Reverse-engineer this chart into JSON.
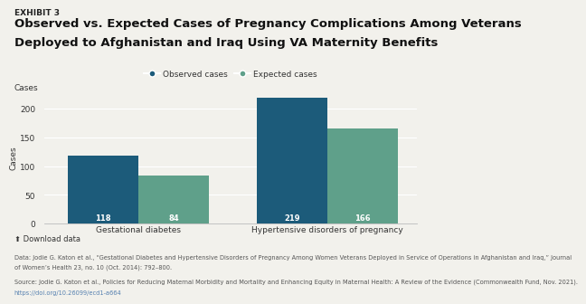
{
  "exhibit_label": "EXHIBIT 3",
  "title_line1": "Observed vs. Expected Cases of Pregnancy Complications Among Veterans",
  "title_line2": "Deployed to Afghanistan and Iraq Using VA Maternity Benefits",
  "ylabel": "Cases",
  "categories": [
    "Gestational diabetes",
    "Hypertensive disorders of pregnancy"
  ],
  "observed_values": [
    118,
    219
  ],
  "expected_values": [
    84,
    166
  ],
  "observed_color": "#1c5b7a",
  "expected_color": "#5fa08a",
  "ylim": [
    0,
    230
  ],
  "yticks": [
    0,
    50,
    100,
    150,
    200
  ],
  "legend_observed": "Observed cases",
  "legend_expected": "Expected cases",
  "bar_label_color": "#ffffff",
  "bar_label_fontsize": 6,
  "download_text": "⬆ Download data",
  "footnote1": "Data: Jodie G. Katon et al., “Gestational Diabetes and Hypertensive Disorders of Pregnancy Among Women Veterans Deployed in Service of Operations in Afghanistan and Iraq,” Journal",
  "footnote2": "of Women’s Health 23, no. 10 (Oct. 2014): 792–800.",
  "footnote3": "Source: Jodie G. Katon et al., Policies for Reducing Maternal Morbidity and Mortality and Enhancing Equity in Maternal Health: A Review of the Evidence (Commonwealth Fund, Nov. 2021).",
  "footnote4": "https://doi.org/10.26099/ecd1-a664",
  "background_color": "#f2f1ec",
  "title_fontsize": 9.5,
  "exhibit_fontsize": 6.5,
  "axis_fontsize": 6.5,
  "legend_fontsize": 6.5,
  "category_fontsize": 6.5,
  "footnote_fontsize": 4.8,
  "download_fontsize": 6.0
}
